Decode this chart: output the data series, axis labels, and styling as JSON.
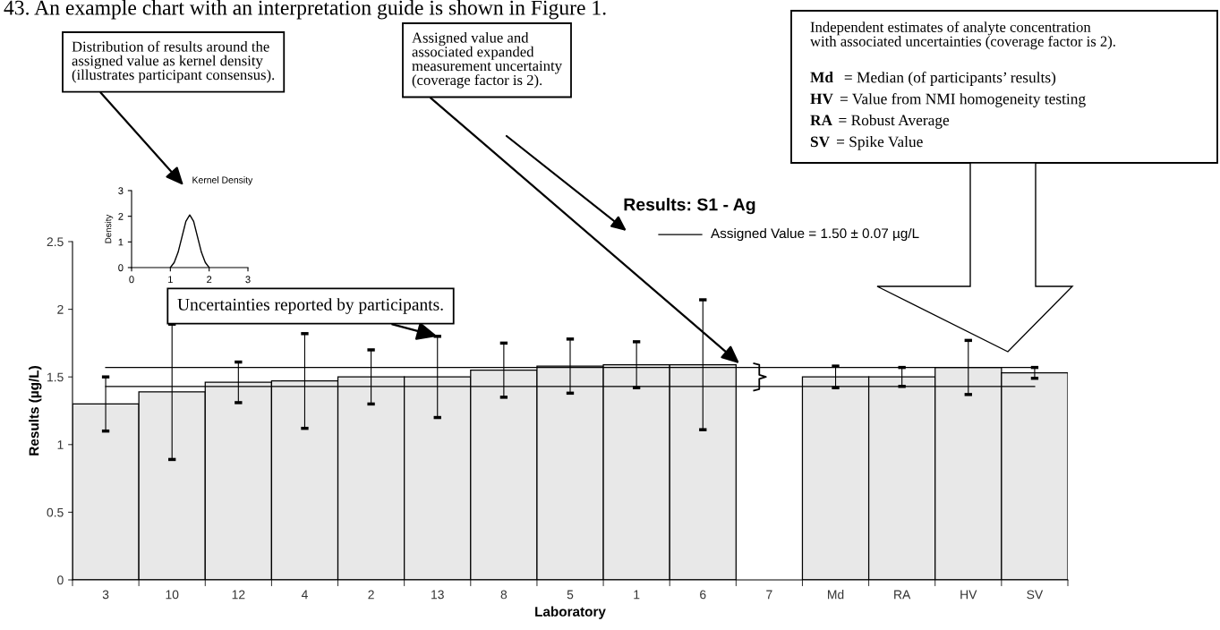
{
  "chart_data": [
    {
      "type": "bar",
      "title": "Results: S1 - Ag",
      "xlabel": "Laboratory",
      "ylabel": "Results (µg/L)",
      "categories": [
        "3",
        "10",
        "12",
        "4",
        "2",
        "13",
        "8",
        "5",
        "1",
        "6",
        "7",
        "Md",
        "RA",
        "HV",
        "SV"
      ],
      "values": [
        1.3,
        1.39,
        1.46,
        1.47,
        1.5,
        1.5,
        1.55,
        1.58,
        1.59,
        1.59,
        null,
        1.5,
        1.5,
        1.57,
        1.53
      ],
      "errors": [
        0.2,
        0.5,
        0.15,
        0.35,
        0.2,
        0.3,
        0.2,
        0.2,
        0.17,
        0.48,
        null,
        0.08,
        0.07,
        0.2,
        0.04
      ],
      "color": "#e8e8e8",
      "ylim": [
        0,
        2.5
      ],
      "yticks": [
        0,
        0.5,
        1,
        1.5,
        2,
        2.5
      ],
      "ref_lines": [
        {
          "axis": "y",
          "value": 1.57,
          "color": "#000000"
        },
        {
          "axis": "y",
          "value": 1.43,
          "color": "#000000"
        }
      ],
      "annotations": [
        "43. An example chart with an interpretation guide is shown in Figure 1.",
        "Distribution of results around the\nassigned value as kernel density\n(illustrates participant consensus).",
        "Assigned value and\nassociated expanded\nmeasurement uncertainty\n(coverage factor is 2).",
        "Independent estimates of analyte concentration\nwith associated uncertainties (coverage factor is 2).",
        "Md  = Median (of participants’ results)",
        "HV = Value from NMI homogeneity testing",
        "RA = Robust Average",
        "SV = Spike Value",
        "Assigned Value = 1.50 ± 0.07 µg/L",
        {
          "text": "Uncertainties reported by participants.",
          "x": "13",
          "y": 1.8
        }
      ]
    },
    {
      "type": "line",
      "title": "Kernel Density",
      "ylabel": "Density",
      "color": "#000000",
      "x": [
        1.0,
        1.1,
        1.2,
        1.3,
        1.4,
        1.5,
        1.6,
        1.7,
        1.8,
        1.9,
        2.0
      ],
      "values": [
        0,
        0.2,
        0.6,
        1.2,
        1.8,
        2.05,
        1.8,
        1.2,
        0.6,
        0.2,
        0
      ],
      "xlim": [
        0,
        3
      ],
      "ylim": [
        0,
        3
      ],
      "xticks": [
        0,
        1,
        2,
        3
      ],
      "yticks": [
        0,
        1,
        2,
        3
      ]
    }
  ]
}
